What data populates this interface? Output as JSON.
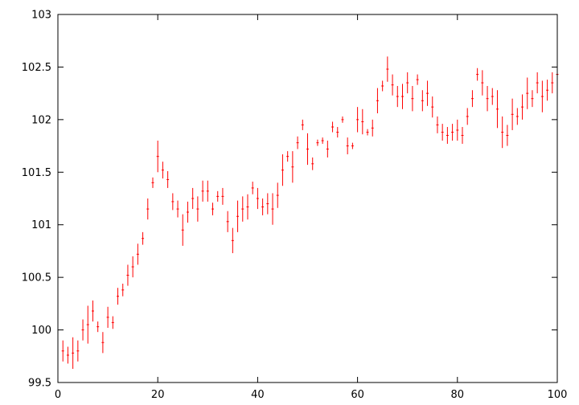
{
  "chart_data": {
    "type": "scatter",
    "error_bars": true,
    "title": "",
    "xlabel": "",
    "ylabel": "",
    "xlim": [
      0,
      100
    ],
    "ylim": [
      99.5,
      103
    ],
    "xticks": [
      "0",
      "20",
      "40",
      "60",
      "80",
      "100"
    ],
    "yticks": [
      "99.5",
      "100",
      "100.5",
      "101",
      "101.5",
      "102",
      "102.5",
      "103"
    ],
    "grid": false,
    "legend": "none",
    "colors": {
      "series": "#ff0000",
      "axes": "#000000",
      "background": "#ffffff"
    },
    "series": [
      {
        "x": [
          1,
          2,
          3,
          4,
          5,
          6,
          7,
          8,
          9,
          10,
          11,
          12,
          13,
          14,
          15,
          16,
          17,
          18,
          19,
          20,
          21,
          22,
          23,
          24,
          25,
          26,
          27,
          28,
          29,
          30,
          31,
          32,
          33,
          34,
          35,
          36,
          37,
          38,
          39,
          40,
          41,
          42,
          43,
          44,
          45,
          46,
          47,
          48,
          49,
          50,
          51,
          52,
          53,
          54,
          55,
          56,
          57,
          58,
          59,
          60,
          61,
          62,
          63,
          64,
          65,
          66,
          67,
          68,
          69,
          70,
          71,
          72,
          73,
          74,
          75,
          76,
          77,
          78,
          79,
          80,
          81,
          82,
          83,
          84,
          85,
          86,
          87,
          88,
          89,
          90,
          91,
          92,
          93,
          94,
          95,
          96,
          97,
          98,
          99,
          100
        ],
        "y": [
          99.8,
          99.76,
          99.78,
          99.8,
          100.0,
          100.05,
          100.18,
          100.03,
          99.88,
          100.12,
          100.07,
          100.32,
          100.38,
          100.52,
          100.6,
          100.72,
          100.87,
          101.15,
          101.4,
          101.65,
          101.52,
          101.43,
          101.22,
          101.15,
          100.95,
          101.12,
          101.25,
          101.15,
          101.32,
          101.32,
          101.15,
          101.27,
          101.27,
          101.03,
          100.85,
          101.08,
          101.15,
          101.17,
          101.35,
          101.25,
          101.17,
          101.2,
          101.15,
          101.28,
          101.52,
          101.65,
          101.55,
          101.78,
          101.95,
          101.72,
          101.58,
          101.78,
          101.8,
          101.72,
          101.93,
          101.88,
          102.0,
          101.75,
          101.75,
          102.0,
          101.98,
          101.88,
          101.92,
          102.18,
          102.32,
          102.48,
          102.33,
          102.22,
          102.22,
          102.35,
          102.2,
          102.38,
          102.18,
          102.25,
          102.12,
          101.95,
          101.88,
          101.85,
          101.88,
          101.9,
          101.85,
          102.03,
          102.2,
          102.43,
          102.35,
          102.2,
          102.22,
          102.1,
          101.88,
          101.85,
          102.05,
          102.03,
          102.12,
          102.25,
          102.2,
          102.35,
          102.22,
          102.28,
          102.35,
          102.43
        ],
        "err": [
          0.1,
          0.08,
          0.15,
          0.1,
          0.1,
          0.18,
          0.1,
          0.05,
          0.1,
          0.1,
          0.06,
          0.08,
          0.06,
          0.1,
          0.1,
          0.1,
          0.06,
          0.1,
          0.05,
          0.15,
          0.08,
          0.08,
          0.08,
          0.08,
          0.15,
          0.1,
          0.1,
          0.12,
          0.1,
          0.1,
          0.06,
          0.05,
          0.08,
          0.1,
          0.12,
          0.15,
          0.12,
          0.12,
          0.06,
          0.1,
          0.08,
          0.1,
          0.15,
          0.12,
          0.15,
          0.05,
          0.15,
          0.06,
          0.05,
          0.15,
          0.06,
          0.03,
          0.03,
          0.08,
          0.05,
          0.05,
          0.03,
          0.08,
          0.03,
          0.12,
          0.12,
          0.03,
          0.08,
          0.12,
          0.05,
          0.12,
          0.1,
          0.1,
          0.12,
          0.1,
          0.12,
          0.05,
          0.1,
          0.12,
          0.1,
          0.08,
          0.08,
          0.08,
          0.08,
          0.1,
          0.08,
          0.08,
          0.08,
          0.06,
          0.12,
          0.12,
          0.08,
          0.18,
          0.15,
          0.1,
          0.15,
          0.08,
          0.12,
          0.15,
          0.08,
          0.1,
          0.15,
          0.1,
          0.1,
          0.1
        ]
      }
    ]
  }
}
